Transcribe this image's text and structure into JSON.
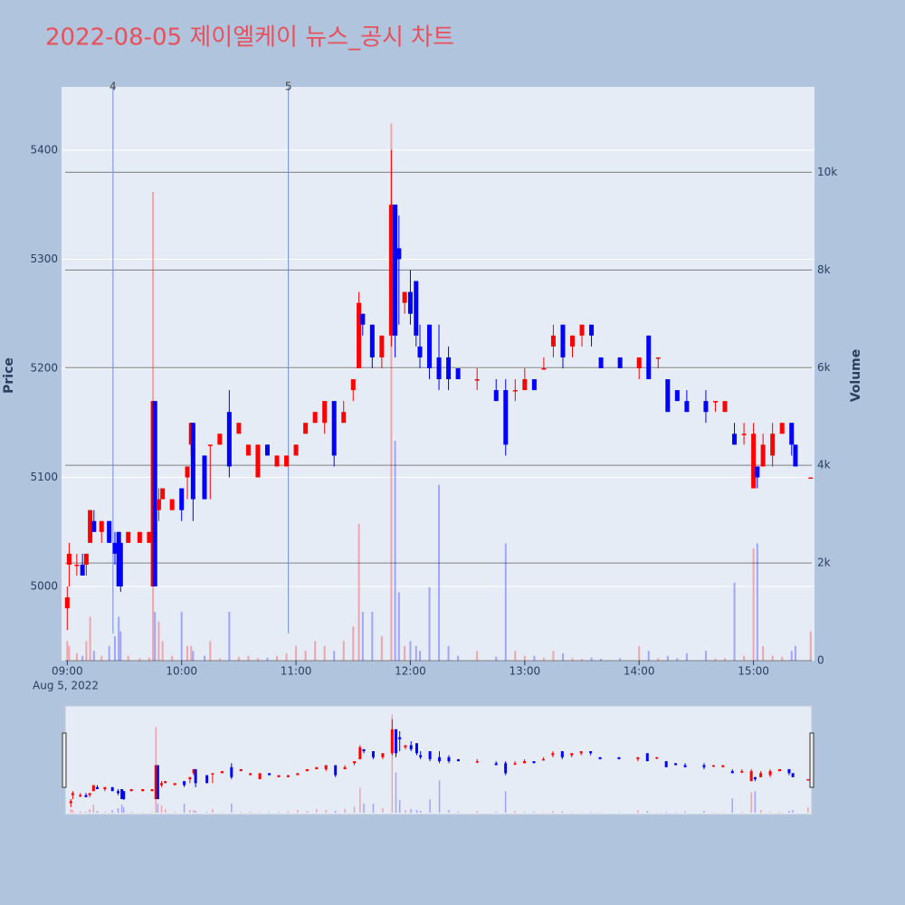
{
  "chart_data": {
    "type": "candlestick",
    "title": "2022-08-05 제이엘케이 뉴스_공시 차트",
    "date_label": "Aug 5, 2022",
    "y_label": "Price",
    "y2_label": "Volume",
    "increasing_color": "#ff0000",
    "decreasing_color": "#0000ff",
    "grid": true,
    "rangeslider": true,
    "xlim": [
      "08:57",
      "15:32"
    ],
    "xticks": [
      "09:00",
      "10:00",
      "11:00",
      "12:00",
      "13:00",
      "14:00",
      "15:00"
    ],
    "ylim": [
      4932,
      5458
    ],
    "yticks": [
      5000,
      5100,
      5200,
      5300,
      5400
    ],
    "y2lim": [
      0,
      11750
    ],
    "y2ticks": [
      0,
      {
        "value": 2000,
        "label": "2k"
      },
      {
        "value": 4000,
        "label": "4k"
      },
      {
        "value": 6000,
        "label": "6k"
      },
      {
        "value": 8000,
        "label": "8k"
      },
      {
        "value": 10000,
        "label": "10k"
      }
    ],
    "annotations": [
      {
        "x": "09:24",
        "text": "4"
      },
      {
        "x": "10:56",
        "text": "5"
      }
    ],
    "x": [
      "09:00",
      "09:01",
      "09:05",
      "09:08",
      "09:10",
      "09:12",
      "09:14",
      "09:18",
      "09:22",
      "09:25",
      "09:27",
      "09:28",
      "09:32",
      "09:38",
      "09:43",
      "09:45",
      "09:46",
      "09:48",
      "09:50",
      "09:55",
      "10:00",
      "10:03",
      "10:05",
      "10:06",
      "10:12",
      "10:15",
      "10:20",
      "10:25",
      "10:30",
      "10:35",
      "10:40",
      "10:45",
      "10:50",
      "10:55",
      "11:00",
      "11:05",
      "11:10",
      "11:15",
      "11:20",
      "11:25",
      "11:30",
      "11:33",
      "11:35",
      "11:40",
      "11:45",
      "11:50",
      "11:52",
      "11:54",
      "11:57",
      "12:00",
      "12:03",
      "12:05",
      "12:10",
      "12:15",
      "12:20",
      "12:25",
      "12:35",
      "12:45",
      "12:50",
      "12:55",
      "13:00",
      "13:05",
      "13:10",
      "13:15",
      "13:20",
      "13:25",
      "13:30",
      "13:35",
      "13:40",
      "13:50",
      "14:00",
      "14:05",
      "14:10",
      "14:15",
      "14:20",
      "14:25",
      "14:35",
      "14:40",
      "14:45",
      "14:50",
      "14:55",
      "15:00",
      "15:02",
      "15:05",
      "15:10",
      "15:15",
      "15:20",
      "15:22",
      "15:30"
    ],
    "open": [
      4980,
      5020,
      5020,
      5020,
      5020,
      5040,
      5060,
      5050,
      5060,
      5040,
      5050,
      5040,
      5040,
      5040,
      5040,
      5000,
      5170,
      5070,
      5080,
      5070,
      5090,
      5100,
      5130,
      5150,
      5120,
      5130,
      5130,
      5160,
      5140,
      5120,
      5100,
      5130,
      5110,
      5110,
      5120,
      5140,
      5150,
      5150,
      5170,
      5150,
      5180,
      5200,
      5250,
      5240,
      5210,
      5230,
      5350,
      5310,
      5260,
      5270,
      5280,
      5220,
      5240,
      5210,
      5210,
      5200,
      5190,
      5180,
      5180,
      5180,
      5180,
      5190,
      5200,
      5220,
      5240,
      5220,
      5230,
      5240,
      5210,
      5210,
      5200,
      5230,
      5210,
      5190,
      5180,
      5170,
      5170,
      5170,
      5160,
      5140,
      5140,
      5090,
      5110,
      5110,
      5120,
      5140,
      5150,
      5130,
      5100
    ],
    "high": [
      5000,
      5040,
      5030,
      5030,
      5030,
      5070,
      5070,
      5060,
      5060,
      5050,
      5050,
      5040,
      5050,
      5050,
      5050,
      5170,
      5170,
      5090,
      5090,
      5080,
      5090,
      5110,
      5150,
      5150,
      5120,
      5130,
      5140,
      5180,
      5150,
      5130,
      5130,
      5130,
      5120,
      5120,
      5130,
      5150,
      5160,
      5170,
      5170,
      5170,
      5190,
      5270,
      5250,
      5240,
      5230,
      5400,
      5350,
      5340,
      5270,
      5290,
      5280,
      5240,
      5240,
      5240,
      5220,
      5200,
      5200,
      5190,
      5190,
      5190,
      5200,
      5190,
      5210,
      5240,
      5240,
      5230,
      5240,
      5240,
      5210,
      5210,
      5210,
      5230,
      5210,
      5190,
      5180,
      5180,
      5180,
      5170,
      5170,
      5150,
      5150,
      5150,
      5110,
      5140,
      5150,
      5150,
      5150,
      5130,
      5100
    ],
    "low": [
      4960,
      5000,
      5010,
      5010,
      5010,
      5040,
      5050,
      5040,
      5040,
      5020,
      5000,
      4995,
      5040,
      5040,
      5040,
      5000,
      5000,
      5060,
      5080,
      5070,
      5060,
      5080,
      5120,
      5060,
      5080,
      5080,
      5130,
      5100,
      5140,
      5120,
      5100,
      5120,
      5110,
      5110,
      5120,
      5140,
      5150,
      5140,
      5110,
      5150,
      5170,
      5200,
      5230,
      5200,
      5200,
      5220,
      5210,
      5240,
      5250,
      5240,
      5220,
      5200,
      5190,
      5180,
      5180,
      5190,
      5180,
      5170,
      5120,
      5170,
      5180,
      5180,
      5200,
      5210,
      5200,
      5210,
      5220,
      5220,
      5200,
      5200,
      5190,
      5190,
      5200,
      5160,
      5170,
      5160,
      5150,
      5160,
      5160,
      5130,
      5130,
      5090,
      5090,
      5110,
      5110,
      5140,
      5120,
      5110,
      5100
    ],
    "close": [
      4990,
      5030,
      5020,
      5010,
      5030,
      5070,
      5050,
      5060,
      5040,
      5030,
      5000,
      5000,
      5050,
      5050,
      5050,
      5170,
      5000,
      5080,
      5090,
      5080,
      5070,
      5110,
      5150,
      5080,
      5080,
      5130,
      5140,
      5110,
      5150,
      5130,
      5130,
      5120,
      5120,
      5120,
      5130,
      5150,
      5160,
      5170,
      5120,
      5160,
      5190,
      5260,
      5240,
      5210,
      5230,
      5350,
      5230,
      5300,
      5270,
      5250,
      5230,
      5210,
      5200,
      5190,
      5190,
      5190,
      5190,
      5170,
      5130,
      5180,
      5190,
      5180,
      5200,
      5230,
      5210,
      5230,
      5240,
      5230,
      5200,
      5200,
      5210,
      5190,
      5210,
      5160,
      5170,
      5160,
      5160,
      5170,
      5170,
      5130,
      5140,
      5140,
      5100,
      5130,
      5140,
      5150,
      5130,
      5110,
      5100
    ],
    "volume": [
      400,
      300,
      150,
      100,
      400,
      900,
      200,
      100,
      300,
      500,
      900,
      600,
      100,
      50,
      60,
      9600,
      1000,
      800,
      400,
      100,
      1000,
      300,
      300,
      200,
      100,
      400,
      50,
      1000,
      80,
      100,
      50,
      60,
      100,
      150,
      300,
      200,
      400,
      300,
      200,
      400,
      700,
      2800,
      1000,
      1000,
      500,
      11000,
      4500,
      1400,
      300,
      400,
      300,
      200,
      1500,
      3600,
      300,
      100,
      200,
      80,
      2400,
      200,
      100,
      100,
      60,
      200,
      150,
      50,
      40,
      60,
      40,
      50,
      300,
      200,
      50,
      100,
      50,
      150,
      200,
      40,
      50,
      1600,
      100,
      2300,
      2400,
      300,
      100,
      80,
      200,
      300,
      600
    ]
  }
}
